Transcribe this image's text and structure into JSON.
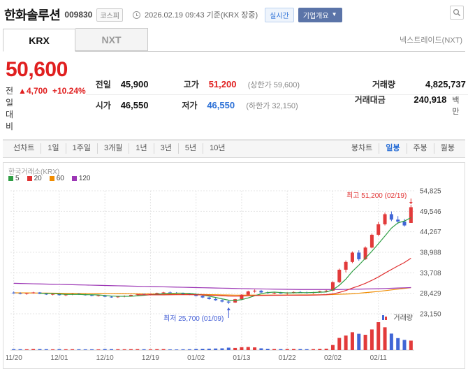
{
  "header": {
    "title": "한화솔루션",
    "code": "009830",
    "market": "코스피",
    "datetime": "2026.02.19 09:43 기준(KRX 장중)",
    "realtime_badge": "실시간",
    "overview_badge": "기업개요",
    "overview_caret": "▼"
  },
  "tabs": [
    {
      "label": "KRX",
      "active": true
    },
    {
      "label": "NXT",
      "active": false
    }
  ],
  "nxt_link": "넥스트레이드(NXT)",
  "price": {
    "current": "50,600",
    "change_label": "전일대비",
    "change_arrow": "▲",
    "change_value": "4,700",
    "change_percent": "+10.24%"
  },
  "summary": {
    "prev": {
      "label": "전일",
      "value": "45,900"
    },
    "high": {
      "label": "고가",
      "value": "51,200",
      "limit": "(상한가 59,600)"
    },
    "volume": {
      "label": "거래량",
      "value": "4,825,737"
    },
    "open": {
      "label": "시가",
      "value": "46,550"
    },
    "low": {
      "label": "저가",
      "value": "46,550",
      "limit": "(하한가 32,150)"
    },
    "amount": {
      "label": "거래대금",
      "value": "240,918",
      "unit": "백만"
    }
  },
  "toolbar": {
    "left": [
      "선차트",
      "1일",
      "1주일",
      "3개월",
      "1년",
      "3년",
      "5년",
      "10년"
    ],
    "right": [
      "봉차트",
      "일봉",
      "주봉",
      "월봉"
    ],
    "active_right_index": 1
  },
  "chart": {
    "exchange_label": "한국거래소(KRX)",
    "legend": [
      {
        "label": "5",
        "color": "#2f9e44"
      },
      {
        "label": "20",
        "color": "#e03131"
      },
      {
        "label": "60",
        "color": "#f08c00"
      },
      {
        "label": "120",
        "color": "#9c36b5"
      }
    ],
    "y_ticks": [
      54825,
      49546,
      44267,
      38988,
      33708,
      28429,
      23150
    ],
    "x_ticks": [
      {
        "label": "11/20",
        "index": 0
      },
      {
        "label": "12/01",
        "index": 7
      },
      {
        "label": "12/10",
        "index": 14
      },
      {
        "label": "12/19",
        "index": 21
      },
      {
        "label": "01/02",
        "index": 28
      },
      {
        "label": "01/13",
        "index": 35
      },
      {
        "label": "01/22",
        "index": 42
      },
      {
        "label": "02/02",
        "index": 49
      },
      {
        "label": "02/11",
        "index": 56
      }
    ],
    "annotations": {
      "high": {
        "text": "최고 51,200 (02/19)",
        "index": 61,
        "price": 51200,
        "color": "#e03131"
      },
      "low": {
        "text": "최저 25,700 (01/09)",
        "index": 33,
        "price": 25700,
        "color": "#3f5bd5"
      }
    },
    "volume_label": "거래량",
    "colors": {
      "up": "#e23a3a",
      "down": "#4066d6",
      "grid": "#e4e4e4",
      "axis_text": "#555",
      "pane_line": "#cccccc"
    }
  },
  "chart_data": {
    "type": "candlestick",
    "ylim": [
      23150,
      54825
    ],
    "columns": [
      "date",
      "open",
      "high",
      "low",
      "close",
      "volume"
    ],
    "candles": [
      [
        "11/20",
        28600,
        28900,
        28300,
        28450,
        520000
      ],
      [
        "11/21",
        28450,
        28700,
        28150,
        28300,
        480000
      ],
      [
        "11/24",
        28300,
        28550,
        28050,
        28500,
        450000
      ],
      [
        "11/25",
        28500,
        28800,
        28350,
        28650,
        600000
      ],
      [
        "11/26",
        28650,
        28750,
        28200,
        28300,
        550000
      ],
      [
        "11/27",
        28300,
        28500,
        28000,
        28150,
        500000
      ],
      [
        "11/28",
        28150,
        28400,
        27900,
        28250,
        430000
      ],
      [
        "12/01",
        28250,
        28350,
        27800,
        27950,
        520000
      ],
      [
        "12/02",
        27950,
        28200,
        27700,
        28100,
        460000
      ],
      [
        "12/03",
        28100,
        28400,
        27950,
        28300,
        480000
      ],
      [
        "12/04",
        28300,
        28450,
        28000,
        28100,
        440000
      ],
      [
        "12/05",
        28100,
        28250,
        27850,
        27950,
        410000
      ],
      [
        "12/08",
        27950,
        28150,
        27650,
        27800,
        430000
      ],
      [
        "12/09",
        27800,
        28050,
        27600,
        27900,
        400000
      ],
      [
        "12/10",
        27900,
        28000,
        27450,
        27550,
        560000
      ],
      [
        "12/11",
        27550,
        27800,
        27300,
        27450,
        520000
      ],
      [
        "12/12",
        27450,
        27700,
        27250,
        27600,
        470000
      ],
      [
        "12/15",
        27600,
        27900,
        27400,
        27750,
        450000
      ],
      [
        "12/16",
        27750,
        28100,
        27600,
        28000,
        500000
      ],
      [
        "12/17",
        28000,
        28300,
        27850,
        28150,
        520000
      ],
      [
        "12/18",
        28150,
        28400,
        27950,
        28050,
        460000
      ],
      [
        "12/19",
        28050,
        28350,
        27900,
        28250,
        430000
      ],
      [
        "12/22",
        28250,
        28600,
        28150,
        28500,
        510000
      ],
      [
        "12/23",
        28500,
        28800,
        28300,
        28650,
        540000
      ],
      [
        "12/24",
        28650,
        28900,
        28450,
        28550,
        380000
      ],
      [
        "12/26",
        28550,
        28750,
        28300,
        28400,
        350000
      ],
      [
        "12/29",
        28400,
        28600,
        28100,
        28250,
        420000
      ],
      [
        "12/30",
        28250,
        28450,
        27950,
        28100,
        450000
      ],
      [
        "01/02",
        28100,
        28200,
        27600,
        27750,
        620000
      ],
      [
        "01/05",
        27750,
        27900,
        27200,
        27350,
        700000
      ],
      [
        "01/06",
        27350,
        27500,
        26800,
        26950,
        750000
      ],
      [
        "01/07",
        26950,
        27250,
        26500,
        26650,
        820000
      ],
      [
        "01/08",
        26650,
        26850,
        26100,
        26300,
        900000
      ],
      [
        "01/09",
        26300,
        26500,
        25700,
        26050,
        1250000
      ],
      [
        "01/12",
        26050,
        27000,
        25950,
        26900,
        1100000
      ],
      [
        "01/13",
        26900,
        28200,
        26850,
        28050,
        1500000
      ],
      [
        "01/14",
        28050,
        29100,
        27950,
        28900,
        1600000
      ],
      [
        "01/15",
        28900,
        29400,
        28600,
        29100,
        1400000
      ],
      [
        "01/16",
        29100,
        29300,
        28500,
        28650,
        900000
      ],
      [
        "01/19",
        28650,
        28900,
        28300,
        28450,
        700000
      ],
      [
        "01/20",
        28450,
        28700,
        28200,
        28550,
        600000
      ],
      [
        "01/21",
        28550,
        28800,
        28300,
        28400,
        550000
      ],
      [
        "01/22",
        28400,
        28700,
        28100,
        28600,
        580000
      ],
      [
        "01/23",
        28600,
        28900,
        28400,
        28750,
        620000
      ],
      [
        "01/26",
        28750,
        29000,
        28500,
        28650,
        560000
      ],
      [
        "01/27",
        28650,
        28850,
        28350,
        28500,
        500000
      ],
      [
        "01/28",
        28500,
        28800,
        28300,
        28700,
        540000
      ],
      [
        "01/29",
        28700,
        29100,
        28550,
        28950,
        680000
      ],
      [
        "01/30",
        28950,
        29300,
        28700,
        29100,
        750000
      ],
      [
        "02/02",
        29100,
        31500,
        29000,
        31300,
        2600000
      ],
      [
        "02/03",
        31300,
        34800,
        31100,
        34500,
        6200000
      ],
      [
        "02/04",
        34500,
        36900,
        33800,
        36500,
        7400000
      ],
      [
        "02/05",
        36500,
        39200,
        36200,
        38900,
        9100000
      ],
      [
        "02/06",
        38900,
        39500,
        36800,
        37200,
        8300000
      ],
      [
        "02/09",
        37200,
        40500,
        37000,
        40200,
        7800000
      ],
      [
        "02/10",
        40200,
        43800,
        40000,
        43500,
        10500000
      ],
      [
        "02/11",
        43500,
        46800,
        43200,
        46200,
        14200000
      ],
      [
        "02/12",
        46200,
        49200,
        45900,
        48800,
        11600000
      ],
      [
        "02/13",
        48800,
        49500,
        47000,
        47400,
        8400000
      ],
      [
        "02/16",
        47400,
        48300,
        46300,
        46900,
        6100000
      ],
      [
        "02/18",
        46900,
        47600,
        45600,
        45900,
        5200000
      ],
      [
        "02/19",
        46550,
        51200,
        46550,
        50600,
        4825737
      ]
    ],
    "ma_computed": [
      {
        "period": 5,
        "color": "#2f9e44"
      },
      {
        "period": 20,
        "color": "#e03131"
      }
    ],
    "ma_overlay_points": [
      {
        "period": 60,
        "color": "#f08c00",
        "points": [
          [
            0,
            28550
          ],
          [
            14,
            28350
          ],
          [
            28,
            28150
          ],
          [
            34,
            27950
          ],
          [
            42,
            27980
          ],
          [
            48,
            28050
          ],
          [
            52,
            28300
          ],
          [
            56,
            28900
          ],
          [
            61,
            29900
          ]
        ]
      },
      {
        "period": 120,
        "color": "#9c36b5",
        "points": [
          [
            0,
            31000
          ],
          [
            10,
            30600
          ],
          [
            20,
            30200
          ],
          [
            28,
            29900
          ],
          [
            36,
            29600
          ],
          [
            44,
            29400
          ],
          [
            50,
            29400
          ],
          [
            56,
            29600
          ],
          [
            61,
            29900
          ]
        ]
      }
    ]
  }
}
